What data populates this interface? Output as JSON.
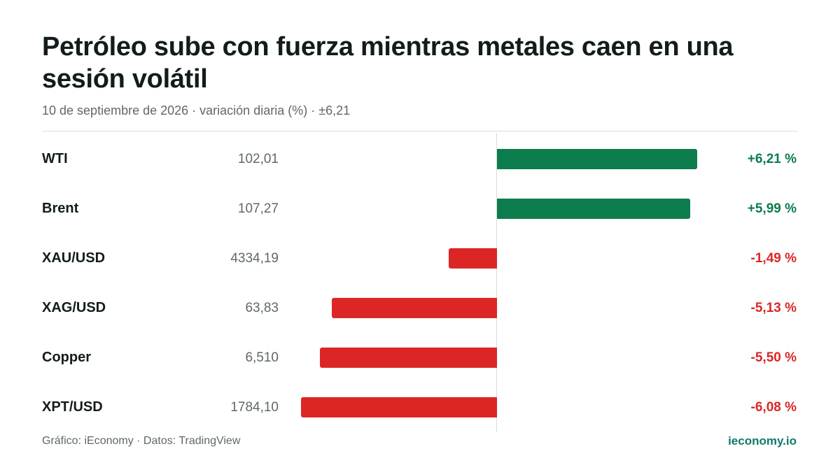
{
  "header": {
    "title": "Petróleo sube con fuerza mientras metales caen en una sesión volátil",
    "subtitle": "10 de septiembre de 2026 · variación diaria (%) · ±6,21"
  },
  "footer": {
    "credit": "Gráfico: iEconomy · Datos: TradingView",
    "brand": "ieconomy.io"
  },
  "colors": {
    "positive": "#0c7c4c",
    "negative": "#dc2626"
  },
  "chart_data": {
    "type": "bar",
    "orientation": "horizontal",
    "scale_max": 6.21,
    "rows": [
      {
        "label": "WTI",
        "price": "102,01",
        "change": 6.21,
        "change_label": "+6,21 %"
      },
      {
        "label": "Brent",
        "price": "107,27",
        "change": 5.99,
        "change_label": "+5,99 %"
      },
      {
        "label": "XAU/USD",
        "price": "4334,19",
        "change": -1.49,
        "change_label": "-1,49 %"
      },
      {
        "label": "XAG/USD",
        "price": "63,83",
        "change": -5.13,
        "change_label": "-5,13 %"
      },
      {
        "label": "Copper",
        "price": "6,510",
        "change": -5.5,
        "change_label": "-5,50 %"
      },
      {
        "label": "XPT/USD",
        "price": "1784,10",
        "change": -6.08,
        "change_label": "-6,08 %"
      }
    ]
  }
}
